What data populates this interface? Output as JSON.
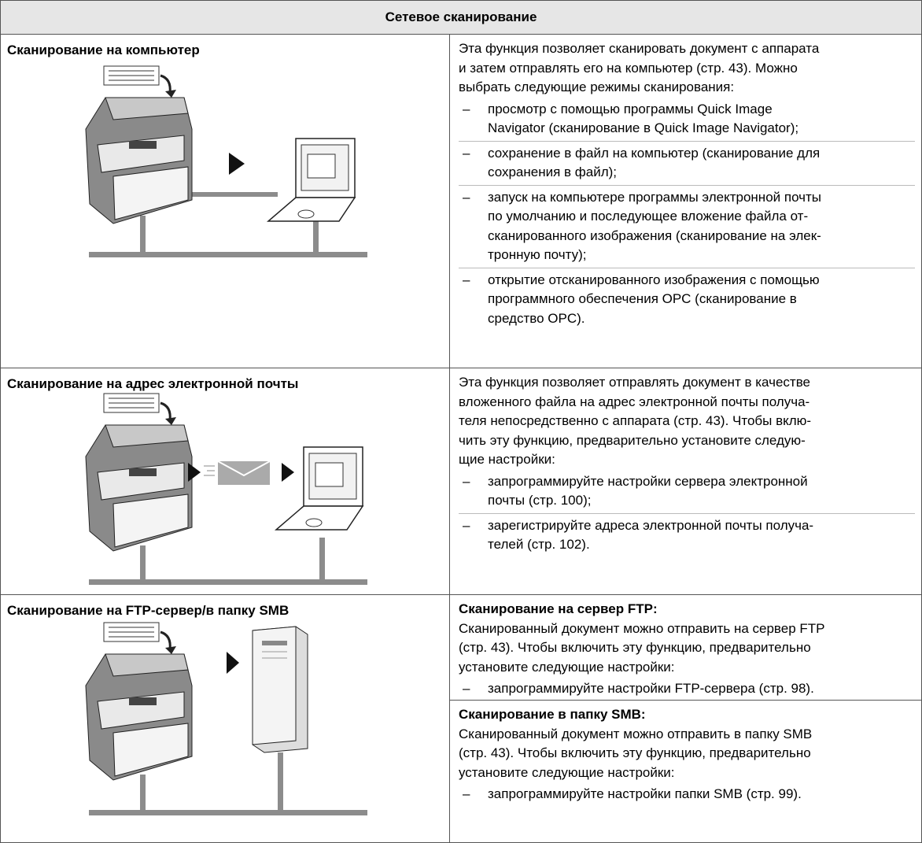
{
  "header": {
    "title": "Сетевое сканирование"
  },
  "bullet": "–",
  "rows": [
    {
      "title": "Сканирование на компьютер",
      "sections": [
        {
          "lines": [
            "Эта функция позволяет сканировать документ с аппарата",
            "и затем отправлять его на компьютер (стр. 43). Можно",
            "выбрать следующие режимы сканирования:"
          ],
          "items": [
            [
              "просмотр с помощью программы Quick Image",
              "Navigator (сканирование в Quick Image Navigator);"
            ],
            [
              "сохранение в файл на компьютер (сканирование для",
              "сохранения в файл);"
            ],
            [
              "запуск на компьютере программы электронной почты",
              "по умолчанию и последующее вложение файла от-",
              "сканированного изображения (сканирование на элек-",
              "тронную почту);"
            ],
            [
              "открытие отсканированного изображения с помощью",
              "программного обеспечения OPC (сканирование в",
              "средство OPC)."
            ]
          ]
        }
      ]
    },
    {
      "title": "Сканирование на адрес электронной почты",
      "sections": [
        {
          "lines": [
            "Эта функция позволяет отправлять документ в качестве",
            "вложенного файла на адрес электронной почты получа-",
            "теля непосредственно с аппарата (стр. 43). Чтобы вклю-",
            "чить эту функцию, предварительно установите следую-",
            "щие настройки:"
          ],
          "items": [
            [
              "запрограммируйте настройки сервера электронной",
              "почты (стр. 100);"
            ],
            [
              "зарегистрируйте адреса электронной почты получа-",
              "телей (стр. 102)."
            ]
          ]
        }
      ]
    },
    {
      "title": "Сканирование на FTP-сервер/в папку SMB",
      "sections": [
        {
          "heading": "Сканирование на сервер FTP:",
          "lines": [
            "Сканированный документ можно отправить на сервер FTP",
            "(стр. 43). Чтобы включить эту функцию, предварительно",
            "установите следующие настройки:"
          ],
          "items": [
            [
              "запрограммируйте настройки FTP-сервера (стр. 98)."
            ]
          ]
        },
        {
          "heading": "Сканирование в папку SMB:",
          "lines": [
            "Сканированный документ можно отправить в папку SMB",
            "(стр. 43). Чтобы включить эту функцию, предварительно",
            "установите следующие настройки:"
          ],
          "items": [
            [
              "запрограммируйте настройки папки SMB (стр. 99)."
            ]
          ]
        }
      ]
    }
  ]
}
